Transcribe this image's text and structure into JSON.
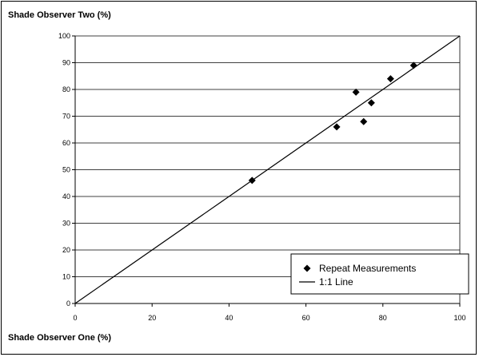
{
  "chart_data": {
    "type": "scatter",
    "xlabel": "Shade Observer One (%)",
    "ylabel": "Shade Observer Two (%)",
    "xlim": [
      0,
      100
    ],
    "ylim": [
      0,
      100
    ],
    "xticks": [
      0,
      20,
      40,
      60,
      80,
      100
    ],
    "yticks": [
      0,
      10,
      20,
      30,
      40,
      50,
      60,
      70,
      80,
      90,
      100
    ],
    "grid": "horizontal",
    "legend_position": "bottom-right",
    "series": [
      {
        "name": "Repeat Measurements",
        "marker": "diamond",
        "x": [
          46,
          68,
          73,
          75,
          77,
          82,
          88
        ],
        "y": [
          46,
          66,
          79,
          68,
          75,
          84,
          89
        ]
      },
      {
        "name": "1:1 Line",
        "style": "line",
        "x": [
          0,
          100
        ],
        "y": [
          0,
          100
        ]
      }
    ]
  }
}
